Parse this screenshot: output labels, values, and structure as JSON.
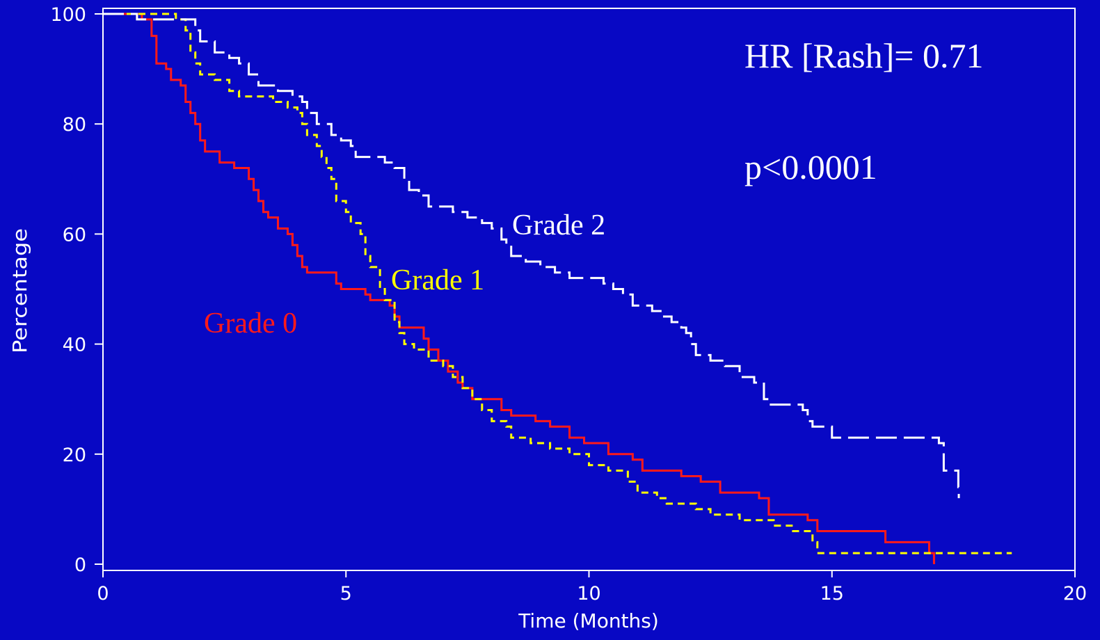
{
  "chart_data": {
    "type": "step",
    "xlabel": "Time (Months)",
    "ylabel": "Percentage",
    "xlim": [
      0,
      20
    ],
    "xticks": [
      0,
      5,
      10,
      15,
      20
    ],
    "ylim": [
      0,
      100
    ],
    "yticks": [
      0,
      20,
      40,
      60,
      80,
      100
    ],
    "annotations": [
      "HR [Rash]= 0.71",
      "p<0.0001"
    ],
    "series": [
      {
        "name": "Grade 0",
        "color": "#ff1a1a",
        "dash": "solid",
        "x": [
          0,
          0.7,
          0.8,
          1.0,
          1.1,
          1.3,
          1.4,
          1.6,
          1.7,
          1.8,
          1.9,
          2.0,
          2.1,
          2.4,
          2.7,
          3.0,
          3.1,
          3.2,
          3.3,
          3.4,
          3.6,
          3.8,
          3.9,
          4.0,
          4.1,
          4.2,
          4.8,
          4.9,
          5.4,
          5.5,
          5.9,
          6.0,
          6.1,
          6.6,
          6.7,
          6.9,
          7.1,
          7.3,
          7.4,
          7.6,
          8.2,
          8.4,
          8.9,
          9.2,
          9.6,
          9.9,
          10.4,
          10.9,
          11.1,
          11.9,
          12.3,
          12.7,
          13.5,
          13.7,
          14.5,
          14.7,
          16.1,
          17.0,
          17.1
        ],
        "values": [
          100,
          100,
          99,
          96,
          91,
          90,
          88,
          87,
          84,
          82,
          80,
          77,
          75,
          73,
          72,
          70,
          68,
          66,
          64,
          63,
          61,
          60,
          58,
          56,
          54,
          53,
          51,
          50,
          49,
          48,
          47,
          45,
          43,
          41,
          39,
          37,
          35,
          33,
          32,
          30,
          28,
          27,
          26,
          25,
          23,
          22,
          20,
          19,
          17,
          16,
          15,
          13,
          12,
          9,
          8,
          6,
          4,
          2,
          0
        ]
      },
      {
        "name": "Grade 1",
        "color": "#ffff00",
        "dash": "short",
        "x": [
          0,
          0.7,
          1.5,
          1.7,
          1.8,
          1.9,
          2.0,
          2.3,
          2.6,
          2.8,
          3.5,
          3.8,
          4.0,
          4.1,
          4.2,
          4.4,
          4.5,
          4.6,
          4.7,
          4.8,
          5.0,
          5.1,
          5.3,
          5.4,
          5.5,
          5.7,
          5.8,
          6.0,
          6.1,
          6.2,
          6.4,
          6.7,
          7.0,
          7.2,
          7.4,
          7.6,
          7.8,
          8.0,
          8.3,
          8.4,
          8.8,
          9.2,
          9.6,
          10.0,
          10.4,
          10.8,
          11.0,
          11.4,
          11.6,
          12.2,
          12.5,
          13.1,
          13.8,
          14.2,
          14.6,
          14.7,
          18.7
        ],
        "values": [
          100,
          100,
          99,
          97,
          93,
          91,
          89,
          88,
          86,
          85,
          84,
          83,
          82,
          80,
          78,
          76,
          74,
          72,
          70,
          66,
          64,
          62,
          60,
          56,
          54,
          50,
          48,
          44,
          42,
          40,
          39,
          37,
          36,
          34,
          32,
          30,
          28,
          26,
          25,
          23,
          22,
          21,
          20,
          18,
          17,
          15,
          13,
          12,
          11,
          10,
          9,
          8,
          7,
          6,
          4,
          2,
          2
        ]
      },
      {
        "name": "Grade 2",
        "color": "#ffffff",
        "dash": "long",
        "x": [
          0,
          0.6,
          0.7,
          1.8,
          1.9,
          2.0,
          2.3,
          2.6,
          2.8,
          3.0,
          3.2,
          3.6,
          3.9,
          4.1,
          4.2,
          4.4,
          4.7,
          4.9,
          5.1,
          5.2,
          5.8,
          6.0,
          6.2,
          6.3,
          6.5,
          6.7,
          7.2,
          7.5,
          7.8,
          8.0,
          8.2,
          8.3,
          8.4,
          8.7,
          9.0,
          9.3,
          9.6,
          10.3,
          10.5,
          10.7,
          10.9,
          11.3,
          11.5,
          11.7,
          11.9,
          12.0,
          12.1,
          12.2,
          12.5,
          12.8,
          13.1,
          13.4,
          13.6,
          13.7,
          14.4,
          14.5,
          14.6,
          15.0,
          17.2,
          17.3,
          17.6,
          17.61
        ],
        "values": [
          100,
          100,
          99,
          99,
          97,
          95,
          93,
          92,
          91,
          89,
          87,
          86,
          85,
          84,
          82,
          80,
          78,
          77,
          76,
          74,
          73,
          72,
          70,
          68,
          67,
          65,
          64,
          63,
          62,
          61,
          59,
          58,
          56,
          55,
          54,
          53,
          52,
          51,
          50,
          49,
          47,
          46,
          45,
          44,
          43,
          42,
          40,
          38,
          37,
          36,
          34,
          33,
          30,
          29,
          28,
          26,
          25,
          23,
          22,
          17,
          14,
          12
        ]
      }
    ]
  }
}
